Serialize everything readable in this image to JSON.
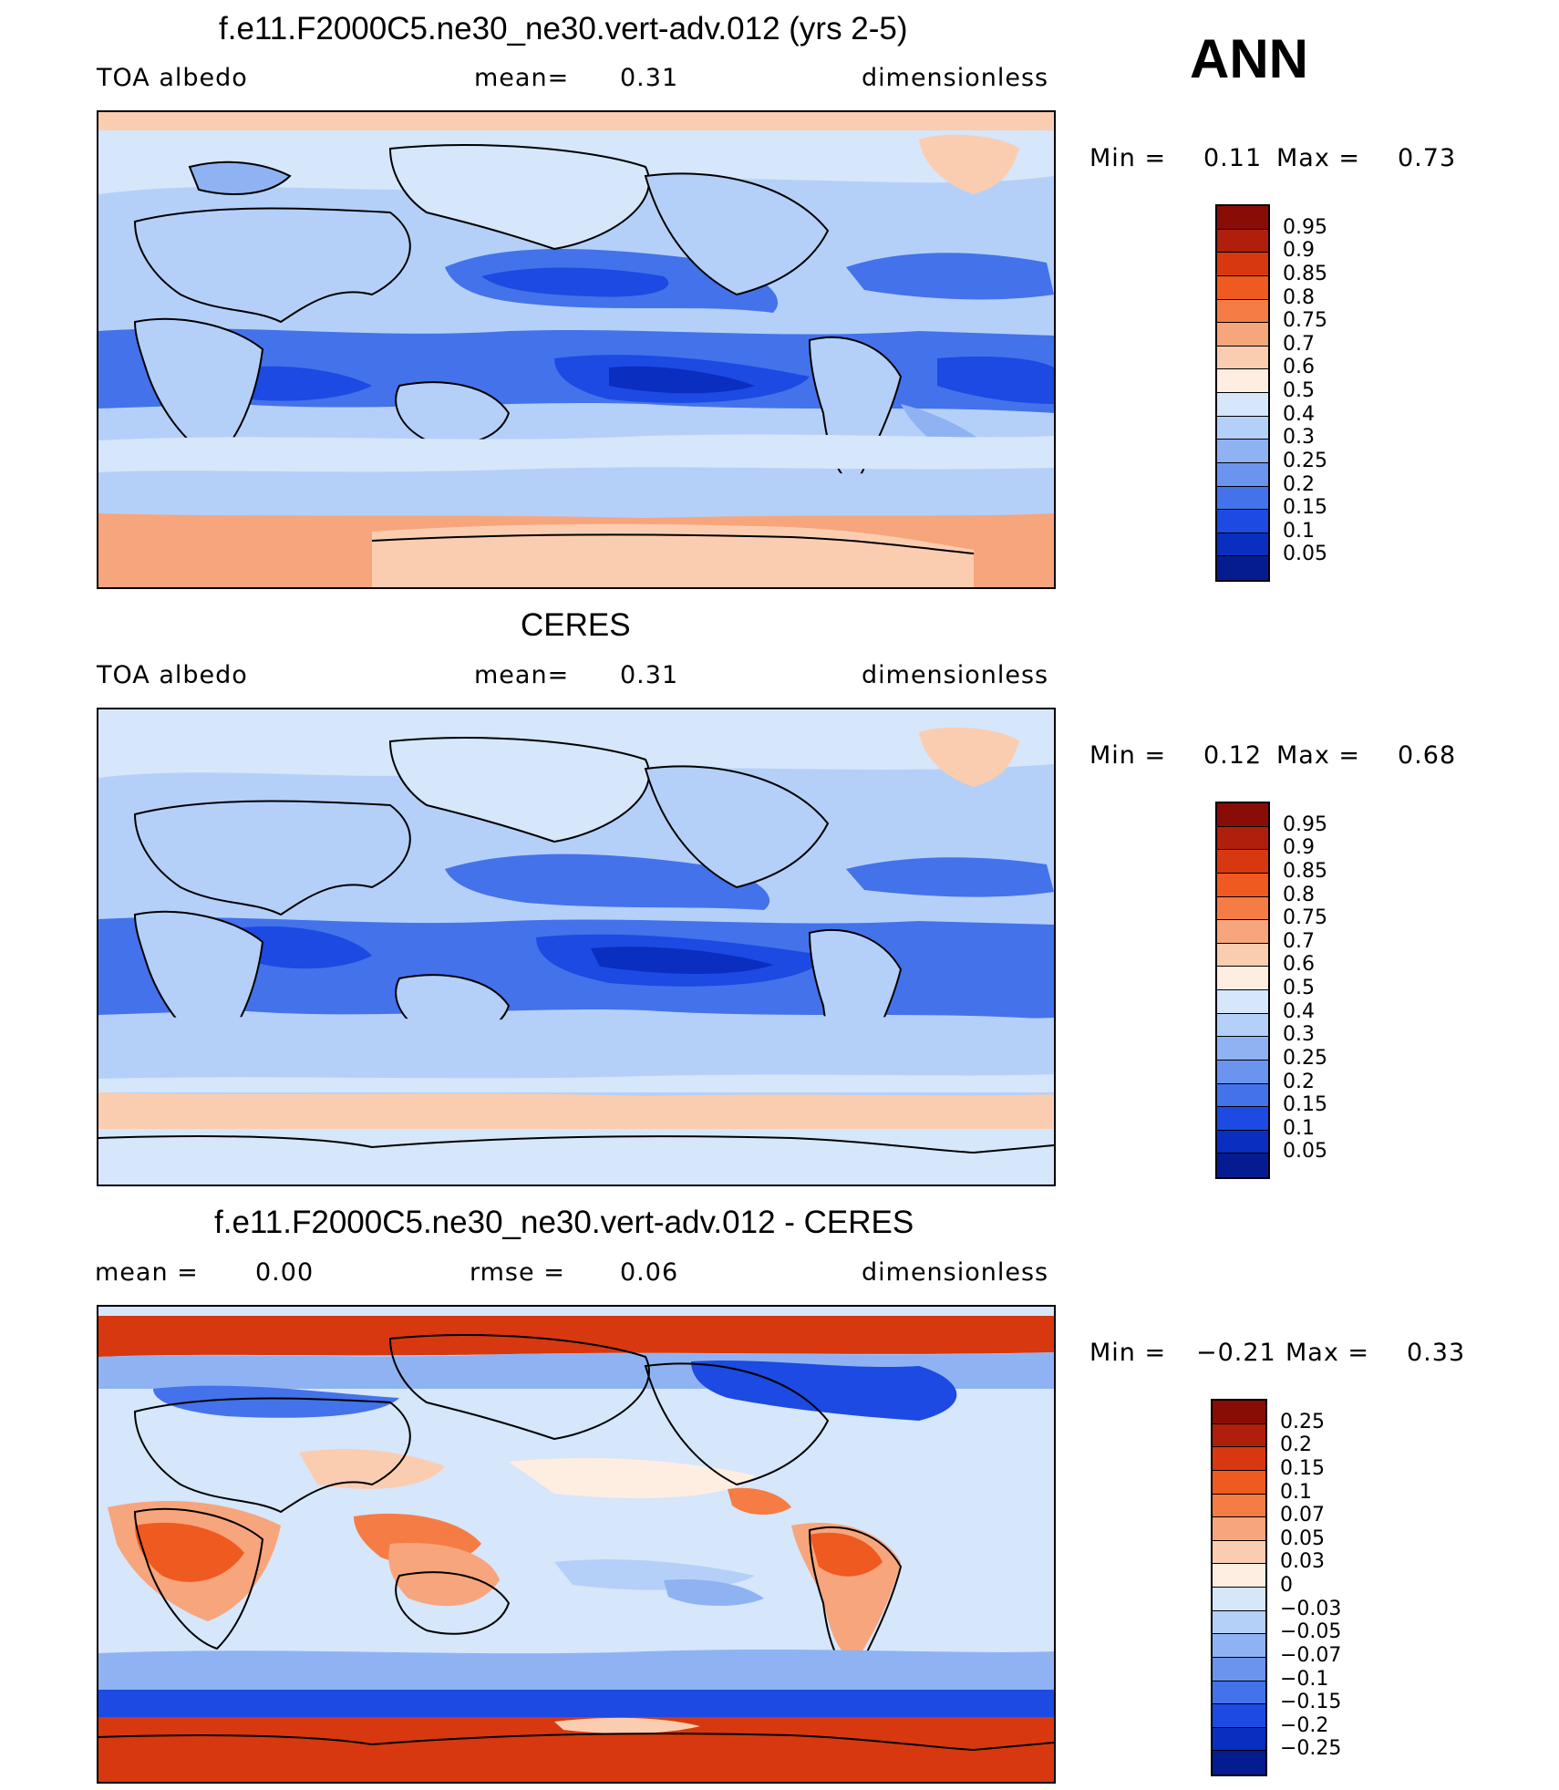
{
  "annotation": "ANN",
  "panels": [
    {
      "title": "f.e11.F2000C5.ne30_ne30.vert-adv.012 (yrs 2-5)",
      "left_label": "TOA albedo",
      "center_label": "mean=",
      "center_value": "0.31",
      "right_label": "dimensionless",
      "min_label": "Min =",
      "min_value": "0.11",
      "max_label": "Max =",
      "max_value": "0.73",
      "levels": [
        "0.95",
        "0.9",
        "0.85",
        "0.8",
        "0.75",
        "0.7",
        "0.6",
        "0.5",
        "0.4",
        "0.3",
        "0.25",
        "0.2",
        "0.15",
        "0.1",
        "0.05"
      ],
      "colors": [
        "#8a0c07",
        "#b01e0c",
        "#d8380f",
        "#ef5a20",
        "#f57d45",
        "#f7a57c",
        "#fbcdb0",
        "#feeee2",
        "#d6e6fb",
        "#b5d0f8",
        "#8fb3f2",
        "#6a94ee",
        "#4472ea",
        "#1c4ae2",
        "#0a2ec0",
        "#041c90"
      ]
    },
    {
      "title": "CERES",
      "left_label": "TOA albedo",
      "center_label": "mean=",
      "center_value": "0.31",
      "right_label": "dimensionless",
      "min_label": "Min =",
      "min_value": "0.12",
      "max_label": "Max =",
      "max_value": "0.68",
      "levels": [
        "0.95",
        "0.9",
        "0.85",
        "0.8",
        "0.75",
        "0.7",
        "0.6",
        "0.5",
        "0.4",
        "0.3",
        "0.25",
        "0.2",
        "0.15",
        "0.1",
        "0.05"
      ],
      "colors": [
        "#8a0c07",
        "#b01e0c",
        "#d8380f",
        "#ef5a20",
        "#f57d45",
        "#f7a57c",
        "#fbcdb0",
        "#feeee2",
        "#d6e6fb",
        "#b5d0f8",
        "#8fb3f2",
        "#6a94ee",
        "#4472ea",
        "#1c4ae2",
        "#0a2ec0",
        "#041c90"
      ]
    },
    {
      "title": "f.e11.F2000C5.ne30_ne30.vert-adv.012 - CERES",
      "left_label": "mean =",
      "left_value": "0.00",
      "center_label": "rmse =",
      "center_value": "0.06",
      "right_label": "dimensionless",
      "min_label": "Min =",
      "min_value": "−0.21",
      "max_label": "Max =",
      "max_value": "0.33",
      "levels": [
        "0.25",
        "0.2",
        "0.15",
        "0.1",
        "0.07",
        "0.05",
        "0.03",
        "0",
        "−0.03",
        "−0.05",
        "−0.07",
        "−0.1",
        "−0.15",
        "−0.2",
        "−0.25"
      ],
      "colors": [
        "#8a0c07",
        "#b01e0c",
        "#d8380f",
        "#ef5a20",
        "#f57d45",
        "#f7a57c",
        "#fbcdb0",
        "#feeee2",
        "#d6e6fb",
        "#b5d0f8",
        "#8fb3f2",
        "#6a94ee",
        "#4472ea",
        "#1c4ae2",
        "#0a2ec0",
        "#041c90"
      ]
    }
  ]
}
